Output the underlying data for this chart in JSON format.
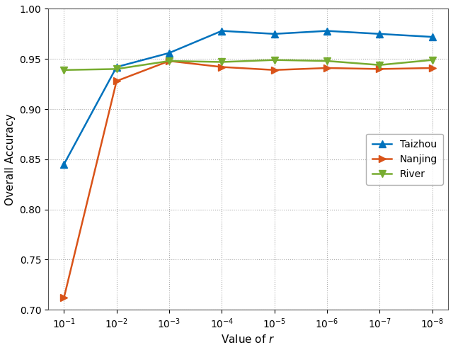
{
  "x_values": [
    0.1,
    0.01,
    0.001,
    0.0001,
    1e-05,
    1e-06,
    1e-07,
    1e-08
  ],
  "taizhou": [
    0.845,
    0.942,
    0.956,
    0.978,
    0.975,
    0.978,
    0.975,
    0.972
  ],
  "nanjing": [
    0.712,
    0.928,
    0.948,
    0.942,
    0.939,
    0.941,
    0.94,
    0.941
  ],
  "river": [
    0.939,
    0.94,
    0.948,
    0.947,
    0.949,
    0.948,
    0.944,
    0.949
  ],
  "taizhou_color": "#0072BD",
  "nanjing_color": "#D95319",
  "river_color": "#77AC30",
  "xlabel": "Value of $r$",
  "ylabel": "Overall Accuracy",
  "ylim": [
    0.7,
    1.0
  ],
  "yticks": [
    0.7,
    0.75,
    0.8,
    0.85,
    0.9,
    0.95,
    1.0
  ],
  "legend_labels": [
    "Taizhou",
    "Nanjing",
    "River"
  ],
  "xlim_left": 0.2,
  "xlim_right": 5e-09
}
